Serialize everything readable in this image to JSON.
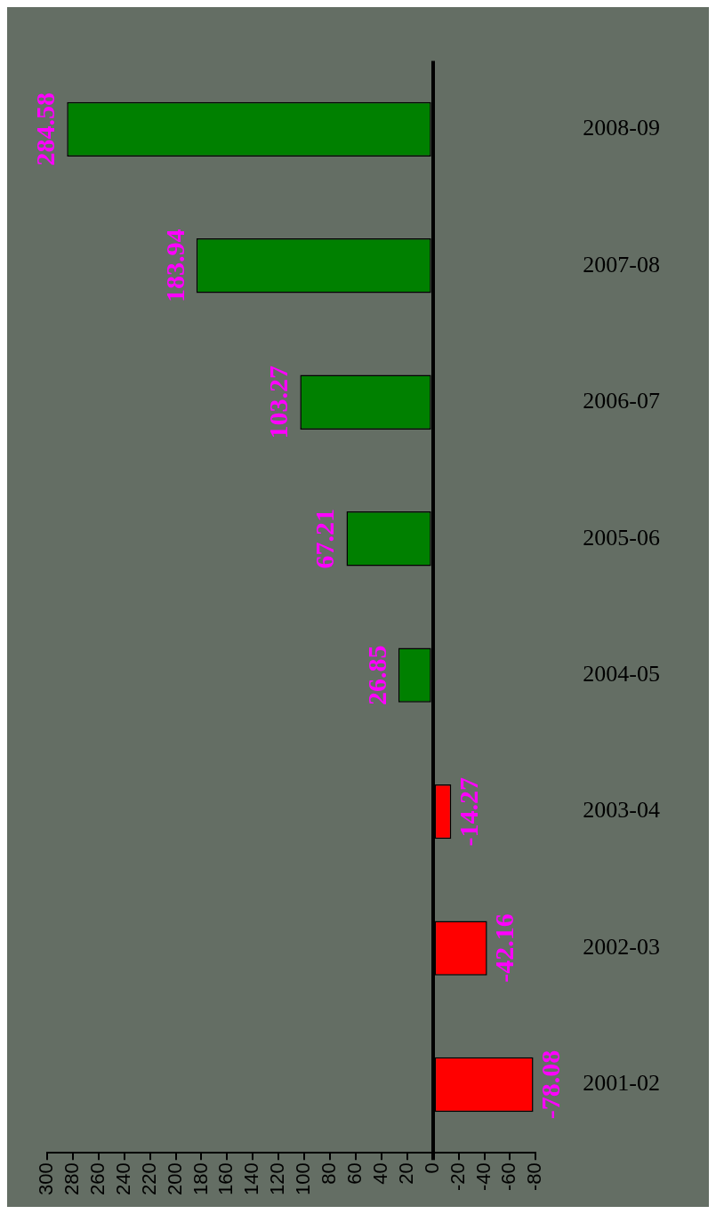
{
  "chart_data": {
    "type": "bar",
    "orientation": "horizontal",
    "categories": [
      "2008-09",
      "2007-08",
      "2006-07",
      "2005-06",
      "2004-05",
      "2003-04",
      "2002-03",
      "2001-02"
    ],
    "values": [
      284.58,
      183.94,
      103.27,
      67.21,
      26.85,
      -14.27,
      -42.16,
      -78.08
    ],
    "colors": [
      "#008000",
      "#008000",
      "#008000",
      "#008000",
      "#008000",
      "#ff0000",
      "#ff0000",
      "#ff0000"
    ],
    "xlim": [
      300,
      -80
    ],
    "xticks": [
      300,
      280,
      260,
      240,
      220,
      200,
      180,
      160,
      140,
      120,
      100,
      80,
      60,
      40,
      20,
      0,
      -20,
      -40,
      -60,
      -80
    ],
    "data_labels": true,
    "legend": false
  }
}
